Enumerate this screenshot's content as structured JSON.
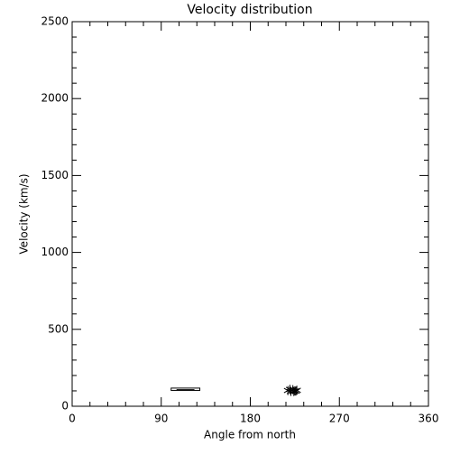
{
  "chart_data": {
    "type": "scatter",
    "title": "Velocity distribution",
    "xlabel": "Angle from north",
    "ylabel": "Velocity (km/s)",
    "xlim": [
      0,
      360
    ],
    "ylim": [
      0,
      2500
    ],
    "xticks": [
      0,
      90,
      180,
      270,
      360
    ],
    "yticks": [
      0,
      500,
      1000,
      1500,
      2000,
      2500
    ],
    "minor_divisions": 5,
    "color": "#000000",
    "x": [
      218,
      221,
      223,
      225,
      227,
      220,
      224,
      226
    ],
    "y": [
      102,
      96,
      108,
      100,
      104,
      110,
      95,
      98
    ],
    "box": {
      "x": [
        100,
        129
      ],
      "y": [
        103,
        118
      ],
      "line": 108
    }
  }
}
